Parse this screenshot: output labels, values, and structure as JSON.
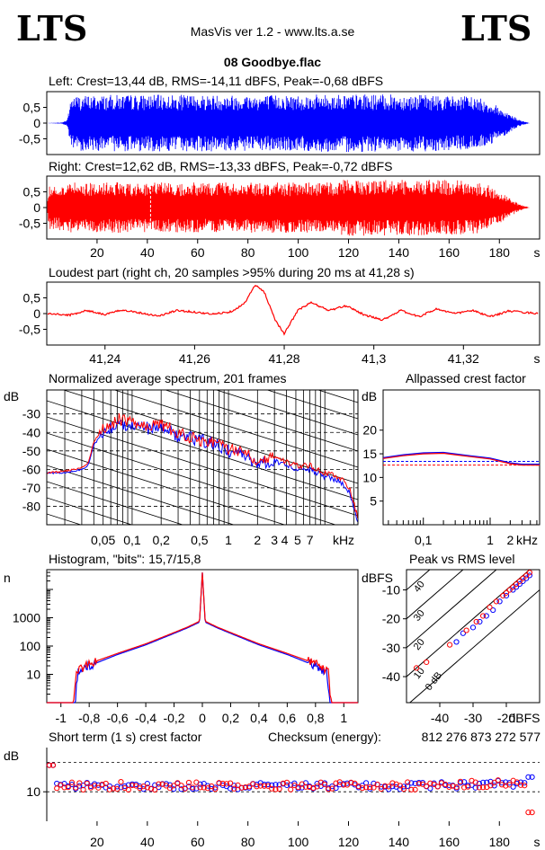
{
  "header": {
    "logo_left": "LTS",
    "logo_right": "LTS",
    "app_title": "MasVis ver 1.2 - www.lts.a.se",
    "file_title": "08 Goodbye.flac"
  },
  "colors": {
    "left": "#0000ff",
    "right": "#ff0000",
    "grid": "#000000"
  },
  "chart_data": [
    {
      "type": "area",
      "id": "waveform-left",
      "title": "Left: Crest=13,44 dB, RMS=-14,11 dBFS, Peak=-0,68 dBFS",
      "ytick_labels": [
        "0,5",
        "0",
        "-0,5"
      ],
      "ylim": [
        -1,
        1
      ],
      "xlim": [
        0,
        196
      ],
      "envelope_time_s": [
        0,
        6,
        8,
        10,
        30,
        60,
        100,
        120,
        150,
        170,
        176,
        182,
        188,
        192
      ],
      "envelope_peak": [
        0,
        0.02,
        0.1,
        0.88,
        0.9,
        0.9,
        0.9,
        0.92,
        0.9,
        0.85,
        0.7,
        0.4,
        0.1,
        0
      ]
    },
    {
      "type": "area",
      "id": "waveform-right",
      "title": "Right: Crest=12,62 dB, RMS=-13,33 dBFS, Peak=-0,72 dBFS",
      "ytick_labels": [
        "0,5",
        "0",
        "-0,5"
      ],
      "ylim": [
        -1,
        1
      ],
      "xlim": [
        0,
        196
      ],
      "xtick_labels": [
        "20",
        "40",
        "60",
        "80",
        "100",
        "120",
        "140",
        "160",
        "180",
        "s"
      ],
      "xticks": [
        20,
        40,
        60,
        80,
        100,
        120,
        140,
        160,
        180
      ],
      "marker_time_s": 41.28,
      "envelope_time_s": [
        0,
        1,
        4,
        10,
        40,
        100,
        115,
        118,
        150,
        170,
        176,
        182,
        188,
        192
      ],
      "envelope_peak": [
        0,
        0.7,
        0.7,
        0.8,
        0.8,
        0.8,
        0.8,
        0.9,
        0.9,
        0.85,
        0.7,
        0.4,
        0.1,
        0
      ]
    },
    {
      "type": "line",
      "id": "loudest-part",
      "title": "Loudest part (right ch, 20 samples >95% during 20 ms at 41,28 s)",
      "ytick_labels": [
        "0,5",
        "0",
        "-0,5"
      ],
      "ylim": [
        -1,
        1
      ],
      "xlim": [
        41.227,
        41.337
      ],
      "xtick_labels": [
        "41,24",
        "41,26",
        "41,28",
        "41,3",
        "41,32",
        "s"
      ],
      "xticks": [
        41.24,
        41.26,
        41.28,
        41.3,
        41.32
      ],
      "series": [
        {
          "x": [
            41.227,
            41.232,
            41.236,
            41.24,
            41.244,
            41.248,
            41.252,
            41.256,
            41.26,
            41.264,
            41.268,
            41.271,
            41.2735,
            41.2755,
            41.278,
            41.28,
            41.283,
            41.286,
            41.29,
            41.294,
            41.298,
            41.302,
            41.306,
            41.31,
            41.314,
            41.318,
            41.322,
            41.326,
            41.33,
            41.337
          ],
          "y": [
            0.0,
            -0.05,
            0.1,
            -0.03,
            0.12,
            0.02,
            -0.08,
            0.1,
            0.05,
            -0.02,
            0.06,
            0.3,
            0.9,
            0.7,
            -0.2,
            -0.65,
            0.1,
            0.35,
            0.1,
            0.25,
            -0.05,
            -0.2,
            0.1,
            -0.1,
            0.15,
            0.0,
            0.1,
            -0.1,
            0.08,
            0.0
          ]
        }
      ]
    },
    {
      "type": "line",
      "id": "average-spectrum",
      "title": "Normalized average spectrum, 201 frames",
      "ylabel": "dB",
      "xlabel": "kHz",
      "ytick_labels": [
        "-30",
        "-40",
        "-50",
        "-60",
        "-70",
        "-80"
      ],
      "yticks": [
        -30,
        -40,
        -50,
        -60,
        -70,
        -80
      ],
      "ylim": [
        -90,
        -17
      ],
      "xtick_labels": [
        "0,05",
        "0,1",
        "0,2",
        "0,5",
        "1",
        "2",
        "3",
        "4",
        "5",
        "7",
        "kHz"
      ],
      "xticks_khz": [
        0.05,
        0.1,
        0.2,
        0.5,
        1,
        2,
        3,
        4,
        5,
        7
      ],
      "xlim_khz": [
        0.013,
        22.05
      ],
      "log_x": true,
      "series": [
        {
          "color": "blue",
          "x_khz": [
            0.013,
            0.02,
            0.03,
            0.035,
            0.04,
            0.05,
            0.07,
            0.1,
            0.15,
            0.2,
            0.3,
            0.5,
            0.7,
            1,
            1.5,
            2,
            3,
            5,
            7,
            10,
            14,
            18,
            22
          ],
          "y_db": [
            -62,
            -62,
            -60,
            -58,
            -47,
            -40,
            -36,
            -35,
            -38,
            -37,
            -42,
            -44,
            -46,
            -50,
            -52,
            -58,
            -55,
            -60,
            -60,
            -64,
            -66,
            -72,
            -88
          ]
        },
        {
          "color": "red",
          "x_khz": [
            0.013,
            0.02,
            0.03,
            0.035,
            0.04,
            0.05,
            0.07,
            0.1,
            0.15,
            0.2,
            0.3,
            0.5,
            0.7,
            1,
            1.5,
            2,
            3,
            5,
            7,
            10,
            14,
            18,
            22
          ],
          "y_db": [
            -62,
            -61,
            -59,
            -57,
            -45,
            -38,
            -33,
            -34,
            -36,
            -36,
            -40,
            -44,
            -45,
            -49,
            -50,
            -55,
            -53,
            -58,
            -58,
            -62,
            -64,
            -70,
            -86
          ]
        }
      ]
    },
    {
      "type": "line",
      "id": "allpassed-crest",
      "title": "Allpassed crest factor",
      "ylabel": "dB",
      "xlabel": "kHz",
      "ytick_labels": [
        "20",
        "15",
        "10",
        "5"
      ],
      "yticks": [
        20,
        15,
        10,
        5
      ],
      "ylim": [
        0,
        28.5
      ],
      "xtick_labels": [
        "0,1",
        "1",
        "2",
        "kHz"
      ],
      "xticks_khz": [
        0.1,
        1,
        2
      ],
      "xlim_khz": [
        0.025,
        5.5
      ],
      "log_x": true,
      "reference_lines_db": {
        "blue": 13.4,
        "red": 12.6
      },
      "series": [
        {
          "color": "blue",
          "x_khz": [
            0.025,
            0.05,
            0.1,
            0.2,
            0.5,
            1,
            2,
            3,
            5.5
          ],
          "y_db": [
            14.2,
            14.8,
            15.2,
            15.3,
            14.6,
            14.1,
            13.1,
            12.8,
            12.8
          ]
        },
        {
          "color": "red",
          "x_khz": [
            0.025,
            0.05,
            0.1,
            0.2,
            0.5,
            1,
            2,
            3,
            5.5
          ],
          "y_db": [
            14.0,
            14.6,
            15.0,
            15.1,
            14.4,
            13.9,
            12.9,
            12.6,
            12.6
          ]
        }
      ]
    },
    {
      "type": "line",
      "id": "histogram",
      "title": "Histogram, \"bits\": 15,7/15,8",
      "ylabel": "n",
      "ytick_labels": [
        "1000",
        "100",
        "10"
      ],
      "yticks": [
        1000,
        100,
        10
      ],
      "log_y": true,
      "ylim": [
        1,
        50000
      ],
      "xtick_labels": [
        "-1",
        "-0,8",
        "-0,6",
        "-0,4",
        "-0,2",
        "0",
        "0,2",
        "0,4",
        "0,6",
        "0,8",
        "1"
      ],
      "xticks": [
        -1,
        -0.8,
        -0.6,
        -0.4,
        -0.2,
        0,
        0.2,
        0.4,
        0.6,
        0.8,
        1
      ],
      "xlim": [
        -1.1,
        1.1
      ],
      "series": [
        {
          "color": "blue",
          "x": [
            -0.9,
            -0.88,
            -0.85,
            -0.8,
            -0.6,
            -0.4,
            -0.2,
            -0.1,
            -0.02,
            0,
            0.02,
            0.1,
            0.2,
            0.4,
            0.6,
            0.8,
            0.85,
            0.88,
            0.9
          ],
          "n": [
            1,
            12,
            14,
            20,
            50,
            110,
            280,
            450,
            700,
            40000,
            700,
            450,
            280,
            110,
            50,
            20,
            14,
            12,
            1
          ]
        },
        {
          "color": "red",
          "x": [
            -0.91,
            -0.89,
            -0.85,
            -0.8,
            -0.6,
            -0.4,
            -0.2,
            -0.1,
            -0.02,
            0,
            0.02,
            0.1,
            0.2,
            0.4,
            0.6,
            0.8,
            0.85,
            0.89,
            0.91
          ],
          "n": [
            1,
            14,
            16,
            24,
            55,
            120,
            300,
            480,
            750,
            40000,
            750,
            480,
            300,
            120,
            55,
            24,
            16,
            14,
            1
          ]
        }
      ]
    },
    {
      "type": "scatter",
      "id": "peak-vs-rms",
      "title": "Peak vs RMS level",
      "ylabel": "dBFS",
      "xlabel": "dBFS",
      "ytick_labels": [
        "-10",
        "-20",
        "-30",
        "-40"
      ],
      "yticks": [
        -10,
        -20,
        -30,
        -40
      ],
      "xtick_labels": [
        "-40",
        "-30",
        "-20",
        "dBFS"
      ],
      "xticks": [
        -40,
        -30,
        -20
      ],
      "xlim": [
        -50,
        -10
      ],
      "ylim": [
        -49,
        -3
      ],
      "crest_line_labels": [
        "40",
        "30",
        "20",
        "10",
        "0 dB"
      ],
      "crest_lines_db": [
        40,
        30,
        20,
        10,
        0
      ],
      "series": [
        {
          "color": "blue",
          "x": [
            -35,
            -33,
            -30,
            -28,
            -26,
            -24,
            -22,
            -20,
            -18,
            -17,
            -16,
            -15,
            -14,
            -13
          ],
          "y": [
            -28,
            -25,
            -23,
            -21,
            -19,
            -17,
            -14,
            -12,
            -10,
            -9,
            -8,
            -7,
            -6,
            -5
          ]
        },
        {
          "color": "red",
          "x": [
            -47,
            -44,
            -37,
            -32,
            -29,
            -27,
            -25,
            -23,
            -21,
            -20,
            -19,
            -18,
            -17,
            -16,
            -15,
            -14,
            -13
          ],
          "y": [
            -37,
            -35,
            -29,
            -24,
            -21,
            -19,
            -16,
            -14,
            -12,
            -11,
            -10,
            -9,
            -8,
            -7,
            -6,
            -5,
            -4
          ]
        }
      ]
    },
    {
      "type": "scatter",
      "id": "short-term-crest",
      "title": "Short term (1 s) crest factor",
      "checksum_label": "Checksum (energy):",
      "checksum_value": "812 276 873 272 577",
      "ylabel": "dB",
      "ytick_labels": [
        "10"
      ],
      "yticks": [
        10
      ],
      "ylim": [
        0,
        25
      ],
      "reference_lines_db": [
        10,
        20
      ],
      "xtick_labels": [
        "20",
        "40",
        "60",
        "80",
        "100",
        "120",
        "140",
        "160",
        "180",
        "s"
      ],
      "xticks": [
        20,
        40,
        60,
        80,
        100,
        120,
        140,
        160,
        180
      ],
      "xlim": [
        0,
        196
      ],
      "series": [
        {
          "color": "blue",
          "mean_db": 12,
          "spread_db": 1.2,
          "start_db": 19,
          "end_db": 15
        },
        {
          "color": "red",
          "mean_db": 12,
          "spread_db": 1.4,
          "start_db": 19,
          "end_db": 3
        }
      ]
    }
  ]
}
